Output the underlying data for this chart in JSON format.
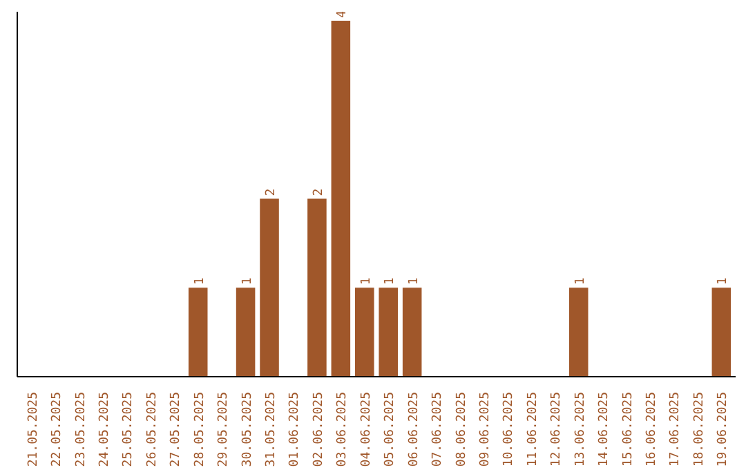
{
  "chart_data": {
    "type": "bar",
    "categories": [
      "21.05.2025",
      "22.05.2025",
      "23.05.2025",
      "24.05.2025",
      "25.05.2025",
      "26.05.2025",
      "27.05.2025",
      "28.05.2025",
      "29.05.2025",
      "30.05.2025",
      "31.05.2025",
      "01.06.2025",
      "02.06.2025",
      "03.06.2025",
      "04.06.2025",
      "05.06.2025",
      "06.06.2025",
      "07.06.2025",
      "08.06.2025",
      "09.06.2025",
      "10.06.2025",
      "11.06.2025",
      "12.06.2025",
      "13.06.2025",
      "14.06.2025",
      "15.06.2025",
      "16.06.2025",
      "17.06.2025",
      "18.06.2025",
      "19.06.2025"
    ],
    "values": [
      0,
      0,
      0,
      0,
      0,
      0,
      0,
      1,
      0,
      1,
      2,
      0,
      2,
      4,
      1,
      1,
      1,
      0,
      0,
      0,
      0,
      0,
      0,
      1,
      0,
      0,
      0,
      0,
      0,
      1
    ],
    "value_labels": [
      null,
      null,
      null,
      null,
      null,
      null,
      null,
      "1",
      null,
      "1",
      "2",
      null,
      "2",
      "4",
      "1",
      "1",
      "1",
      null,
      null,
      null,
      null,
      null,
      null,
      "1",
      null,
      null,
      null,
      null,
      null,
      "1"
    ],
    "color": "#a0572a",
    "grid": false,
    "tick_labels": "x"
  }
}
